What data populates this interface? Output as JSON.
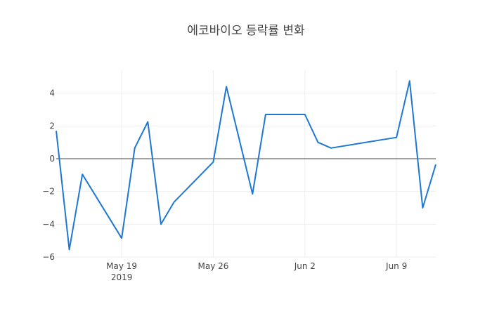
{
  "chart_data": {
    "type": "line",
    "title": "에코바이오 등락률 변화",
    "xlabel": "",
    "ylabel": "",
    "x_ticks": [
      {
        "date": "2019-05-19",
        "label": "May 19",
        "sublabel": "2019"
      },
      {
        "date": "2019-05-26",
        "label": "May 26",
        "sublabel": ""
      },
      {
        "date": "2019-06-02",
        "label": "Jun 2",
        "sublabel": ""
      },
      {
        "date": "2019-06-09",
        "label": "Jun 9",
        "sublabel": ""
      }
    ],
    "y_ticks": [
      -6,
      -4,
      -2,
      0,
      2,
      4
    ],
    "xlim": [
      "2019-05-14",
      "2019-06-12"
    ],
    "ylim": [
      -6,
      5.4
    ],
    "grid": true,
    "zero_line": true,
    "color": "#1f77d4",
    "series": [
      {
        "x": [
          "2019-05-14",
          "2019-05-15",
          "2019-05-16",
          "2019-05-19",
          "2019-05-20",
          "2019-05-21",
          "2019-05-22",
          "2019-05-23",
          "2019-05-26",
          "2019-05-27",
          "2019-05-29",
          "2019-05-30",
          "2019-06-02",
          "2019-06-03",
          "2019-06-04",
          "2019-06-09",
          "2019-06-10",
          "2019-06-11",
          "2019-06-12"
        ],
        "y": [
          1.7,
          -5.55,
          -0.95,
          -4.85,
          0.65,
          2.25,
          -4.0,
          -2.65,
          -0.2,
          4.4,
          -2.15,
          2.7,
          2.7,
          1.0,
          0.65,
          1.3,
          4.75,
          -3.0,
          -0.35
        ]
      }
    ]
  }
}
